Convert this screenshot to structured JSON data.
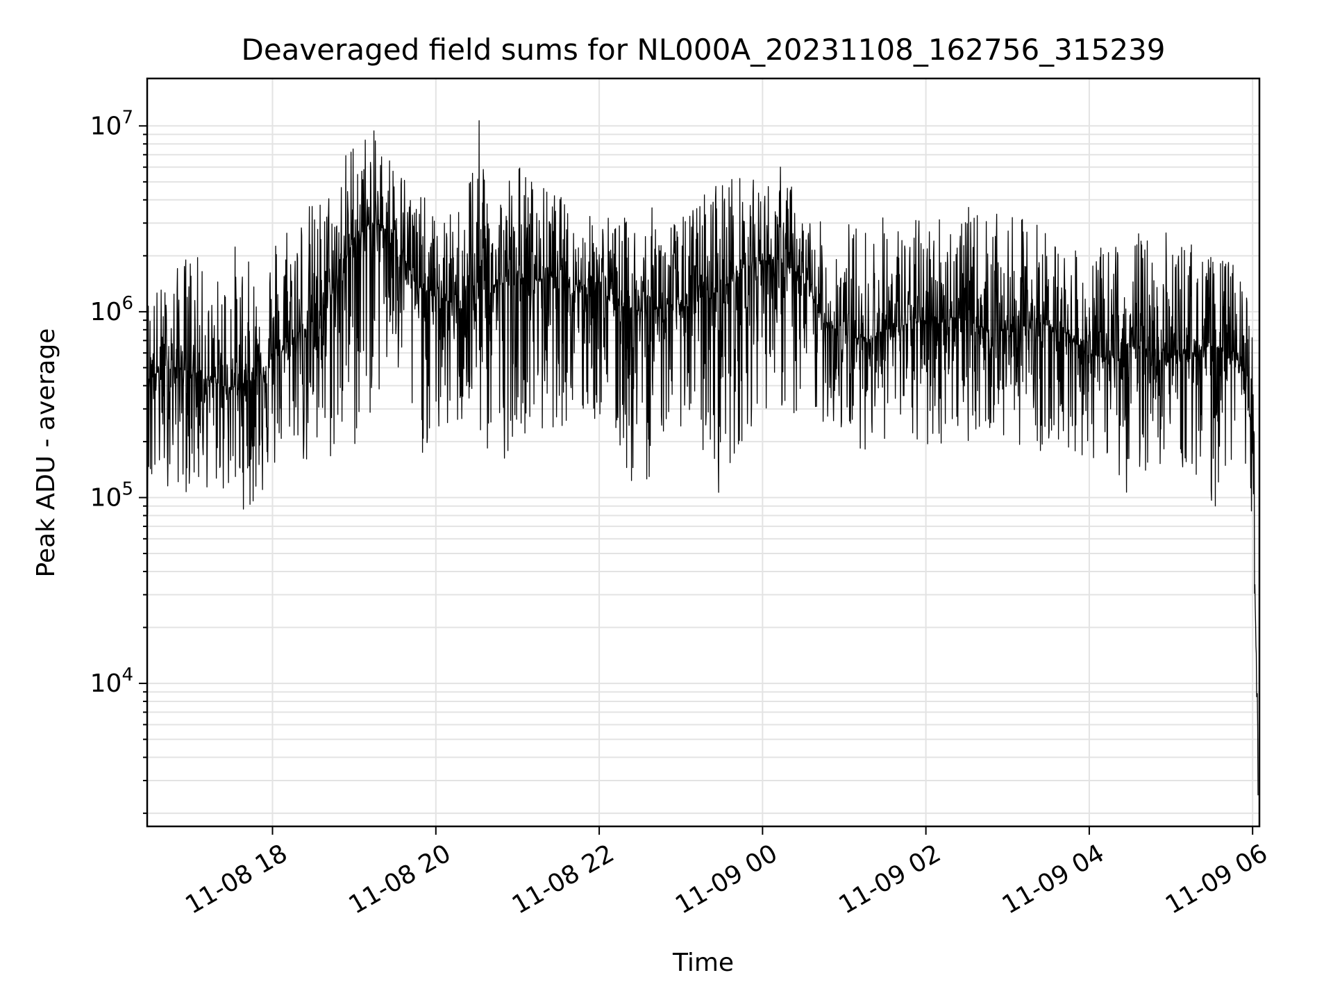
{
  "chart_data": {
    "type": "line",
    "title": "Deaveraged field sums for NL000A_20231108_162756_315239",
    "xlabel": "Time",
    "ylabel": "Peak ADU - average",
    "yscale": "log",
    "ylim": [
      1700,
      18000000
    ],
    "xlim": [
      "2023-11-08 16:27:56",
      "2023-11-09 06:05:00"
    ],
    "grid": true,
    "grid_minor": true,
    "series_color": "#000000",
    "x_ticks": [
      {
        "value": "2023-11-08 18:00",
        "label": "11-08 18"
      },
      {
        "value": "2023-11-08 20:00",
        "label": "11-08 20"
      },
      {
        "value": "2023-11-08 22:00",
        "label": "11-08 22"
      },
      {
        "value": "2023-11-09 00:00",
        "label": "11-09 00"
      },
      {
        "value": "2023-11-09 02:00",
        "label": "11-09 02"
      },
      {
        "value": "2023-11-09 04:00",
        "label": "11-09 04"
      },
      {
        "value": "2023-11-09 06:00",
        "label": "11-09 06"
      }
    ],
    "y_ticks": [
      {
        "value": 10000,
        "base": "10",
        "exp": "4"
      },
      {
        "value": 100000,
        "base": "10",
        "exp": "5"
      },
      {
        "value": 1000000,
        "base": "10",
        "exp": "6"
      },
      {
        "value": 10000000,
        "base": "10",
        "exp": "7"
      }
    ],
    "series": [
      {
        "x": [
          "2023-11-08 16:28",
          "2023-11-08 16:45",
          "2023-11-08 17:00",
          "2023-11-08 17:15",
          "2023-11-08 17:30",
          "2023-11-08 17:45",
          "2023-11-08 18:00",
          "2023-11-08 18:15",
          "2023-11-08 18:30",
          "2023-11-08 18:45",
          "2023-11-08 19:00",
          "2023-11-08 19:15",
          "2023-11-08 19:30",
          "2023-11-08 19:45",
          "2023-11-08 20:00",
          "2023-11-08 20:15",
          "2023-11-08 20:30",
          "2023-11-08 20:45",
          "2023-11-08 21:00",
          "2023-11-08 21:15",
          "2023-11-08 21:30",
          "2023-11-08 21:45",
          "2023-11-08 22:00",
          "2023-11-08 22:15",
          "2023-11-08 22:30",
          "2023-11-08 22:45",
          "2023-11-08 23:00",
          "2023-11-08 23:15",
          "2023-11-08 23:30",
          "2023-11-08 23:45",
          "2023-11-09 00:00",
          "2023-11-09 00:15",
          "2023-11-09 00:30",
          "2023-11-09 00:45",
          "2023-11-09 01:00",
          "2023-11-09 01:15",
          "2023-11-09 01:30",
          "2023-11-09 01:45",
          "2023-11-09 02:00",
          "2023-11-09 02:15",
          "2023-11-09 02:30",
          "2023-11-09 02:45",
          "2023-11-09 03:00",
          "2023-11-09 03:15",
          "2023-11-09 03:30",
          "2023-11-09 03:45",
          "2023-11-09 04:00",
          "2023-11-09 04:15",
          "2023-11-09 04:30",
          "2023-11-09 04:45",
          "2023-11-09 05:00",
          "2023-11-09 05:15",
          "2023-11-09 05:30",
          "2023-11-09 05:45",
          "2023-11-09 05:55",
          "2023-11-09 06:00",
          "2023-11-09 06:02",
          "2023-11-09 06:04"
        ],
        "y": [
          450000,
          500000,
          480000,
          420000,
          390000,
          430000,
          550000,
          700000,
          900000,
          1300000,
          2500000,
          3000000,
          2600000,
          1400000,
          1200000,
          1100000,
          1300000,
          1400000,
          1500000,
          1500000,
          1600000,
          1400000,
          1300000,
          1100000,
          1000000,
          1050000,
          1100000,
          1200000,
          1300000,
          1700000,
          1900000,
          1800000,
          1500000,
          900000,
          750000,
          700000,
          800000,
          850000,
          900000,
          950000,
          900000,
          800000,
          800000,
          850000,
          850000,
          750000,
          600000,
          550000,
          650000,
          620000,
          580000,
          600000,
          650000,
          620000,
          450000,
          200000,
          30000,
          2500
        ],
        "y_max": [
          1400000,
          1500000,
          2500000,
          1300000,
          2600000,
          1800000,
          2800000,
          4500000,
          4000000,
          5500000,
          10000000,
          9500000,
          7500000,
          5000000,
          3300000,
          3500000,
          12000000,
          5000000,
          7000000,
          5000000,
          4500000,
          3000000,
          3800000,
          3200000,
          3500000,
          3800000,
          3200000,
          4500000,
          6200000,
          5500000,
          5000000,
          6500000,
          3500000,
          3000000,
          3300000,
          3000000,
          3500000,
          3000000,
          3500000,
          3800000,
          3700000,
          3500000,
          3200000,
          3300000,
          3000000,
          2200000,
          2000000,
          2400000,
          3000000,
          2600000,
          2800000,
          2500000,
          2000000,
          1900000,
          1500000,
          800000,
          200000,
          40000
        ],
        "y_min": [
          80000,
          120000,
          100000,
          110000,
          95000,
          80000,
          120000,
          200000,
          100000,
          150000,
          160000,
          300000,
          400000,
          160000,
          180000,
          220000,
          200000,
          120000,
          250000,
          180000,
          250000,
          200000,
          250000,
          150000,
          85000,
          200000,
          240000,
          160000,
          95000,
          200000,
          300000,
          280000,
          200000,
          250000,
          200000,
          180000,
          200000,
          180000,
          160000,
          200000,
          200000,
          220000,
          180000,
          200000,
          160000,
          180000,
          150000,
          160000,
          95000,
          150000,
          140000,
          130000,
          80000,
          140000,
          150000,
          40000,
          25000,
          2500
        ]
      }
    ]
  }
}
